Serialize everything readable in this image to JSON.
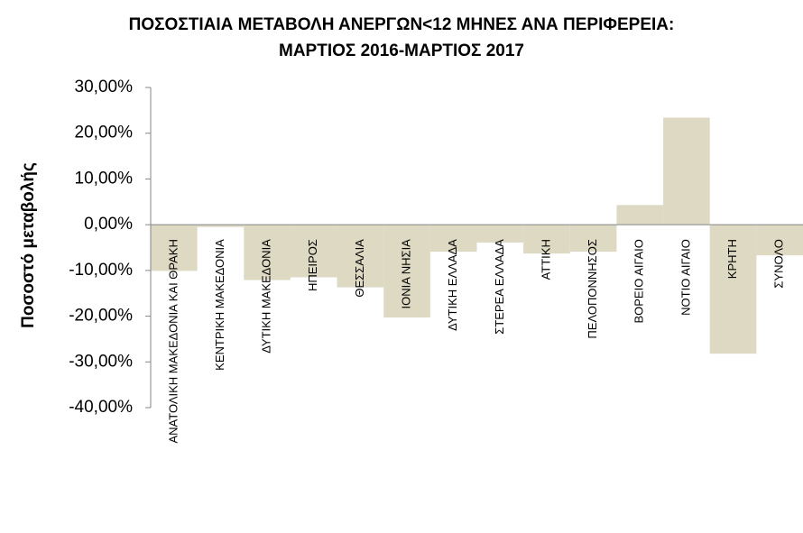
{
  "chart_data": {
    "type": "bar",
    "title": [
      "ΠΟΣΟΣΤΙΑΙΑ ΜΕΤΑΒΟΛΗ  ΑΝΕΡΓΩΝ<12 ΜΗΝΕΣ ΑΝΑ ΠΕΡΙΦΕΡΕΙΑ:",
      "ΜΑΡΤΙΟΣ 2016-ΜΑΡΤΙΟΣ 2017"
    ],
    "y_label": "Ποσοστό μεταβολής",
    "categories": [
      "ΑΝΑΤΟΛΙΚΗ ΜΑΚΕΔΟΝΙΑ ΚΑΙ ΘΡΑΚΗ",
      "ΚΕΝΤΡΙΚΗ ΜΑΚΕΔΟΝΙΑ",
      "ΔΥΤΙΚΗ ΜΑΚΕΔΟΝΙΑ",
      "ΗΠΕΙΡΟΣ",
      "ΘΕΣΣΑΛΙΑ",
      "ΙΟΝΙΑ ΝΗΣΙΑ",
      "ΔΥΤΙΚΗ ΕΛΛΑΔΑ",
      "ΣΤΕΡΕΑ ΕΛΛΑΔΑ",
      "ΑΤΤΙΚΗ",
      "ΠΕΛΟΠΟΝΝΗΣΟΣ",
      "ΒΟΡΕΙΟ ΑΙΓΑΙΟ",
      "ΝΟΤΙΟ ΑΙΓΑΙΟ",
      "ΚΡΗΤΗ",
      "ΣΥΝΟΛΟ"
    ],
    "values": [
      -10.1,
      -0.5,
      -12.1,
      -11.5,
      -13.7,
      -20.3,
      -5.9,
      -3.9,
      -6.3,
      -5.9,
      4.3,
      23.4,
      -28.2,
      -6.7
    ],
    "color": "#ddd9c3",
    "ylim": [
      -40,
      30
    ],
    "yticks": [
      {
        "value": -40,
        "label": "-40,00%"
      },
      {
        "value": -30,
        "label": "-30,00%"
      },
      {
        "value": -20,
        "label": "-20,00%"
      },
      {
        "value": -10,
        "label": "-10,00%"
      },
      {
        "value": 0,
        "label": "0,00%"
      },
      {
        "value": 10,
        "label": "10,00%"
      },
      {
        "value": 20,
        "label": "20,00%"
      },
      {
        "value": 30,
        "label": "30,00%"
      }
    ]
  }
}
